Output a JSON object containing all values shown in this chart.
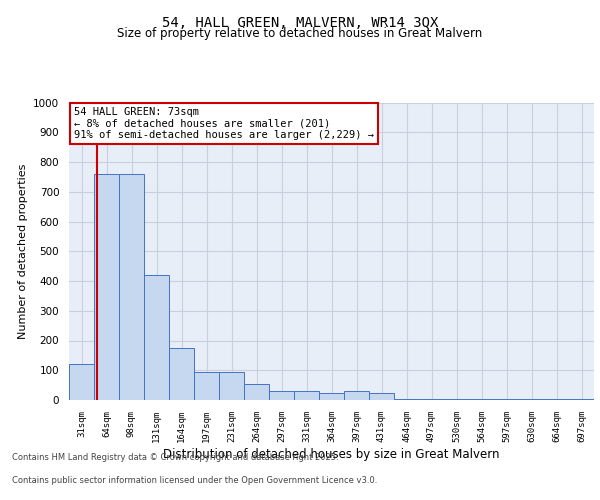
{
  "title_line1": "54, HALL GREEN, MALVERN, WR14 3QX",
  "title_line2": "Size of property relative to detached houses in Great Malvern",
  "xlabel": "Distribution of detached houses by size in Great Malvern",
  "ylabel": "Number of detached properties",
  "footer_line1": "Contains HM Land Registry data © Crown copyright and database right 2025.",
  "footer_line2": "Contains public sector information licensed under the Open Government Licence v3.0.",
  "annotation_line1": "54 HALL GREEN: 73sqm",
  "annotation_line2": "← 8% of detached houses are smaller (201)",
  "annotation_line3": "91% of semi-detached houses are larger (2,229) →",
  "bar_values": [
    120,
    760,
    760,
    420,
    175,
    95,
    95,
    55,
    30,
    30,
    25,
    30,
    25,
    5,
    5,
    5,
    5,
    5,
    5,
    5,
    5
  ],
  "bin_labels": [
    "31sqm",
    "64sqm",
    "98sqm",
    "131sqm",
    "164sqm",
    "197sqm",
    "231sqm",
    "264sqm",
    "297sqm",
    "331sqm",
    "364sqm",
    "397sqm",
    "431sqm",
    "464sqm",
    "497sqm",
    "530sqm",
    "564sqm",
    "597sqm",
    "630sqm",
    "664sqm",
    "697sqm"
  ],
  "bar_color": "#c5d8f0",
  "bar_edge_color": "#4472c4",
  "marker_color": "#cc0000",
  "ylim": [
    0,
    1000
  ],
  "yticks": [
    0,
    100,
    200,
    300,
    400,
    500,
    600,
    700,
    800,
    900,
    1000
  ],
  "grid_color": "#c8d0e0",
  "background_color": "#e8eef8",
  "annotation_box_color": "#cc0000",
  "figure_bg": "#ffffff"
}
